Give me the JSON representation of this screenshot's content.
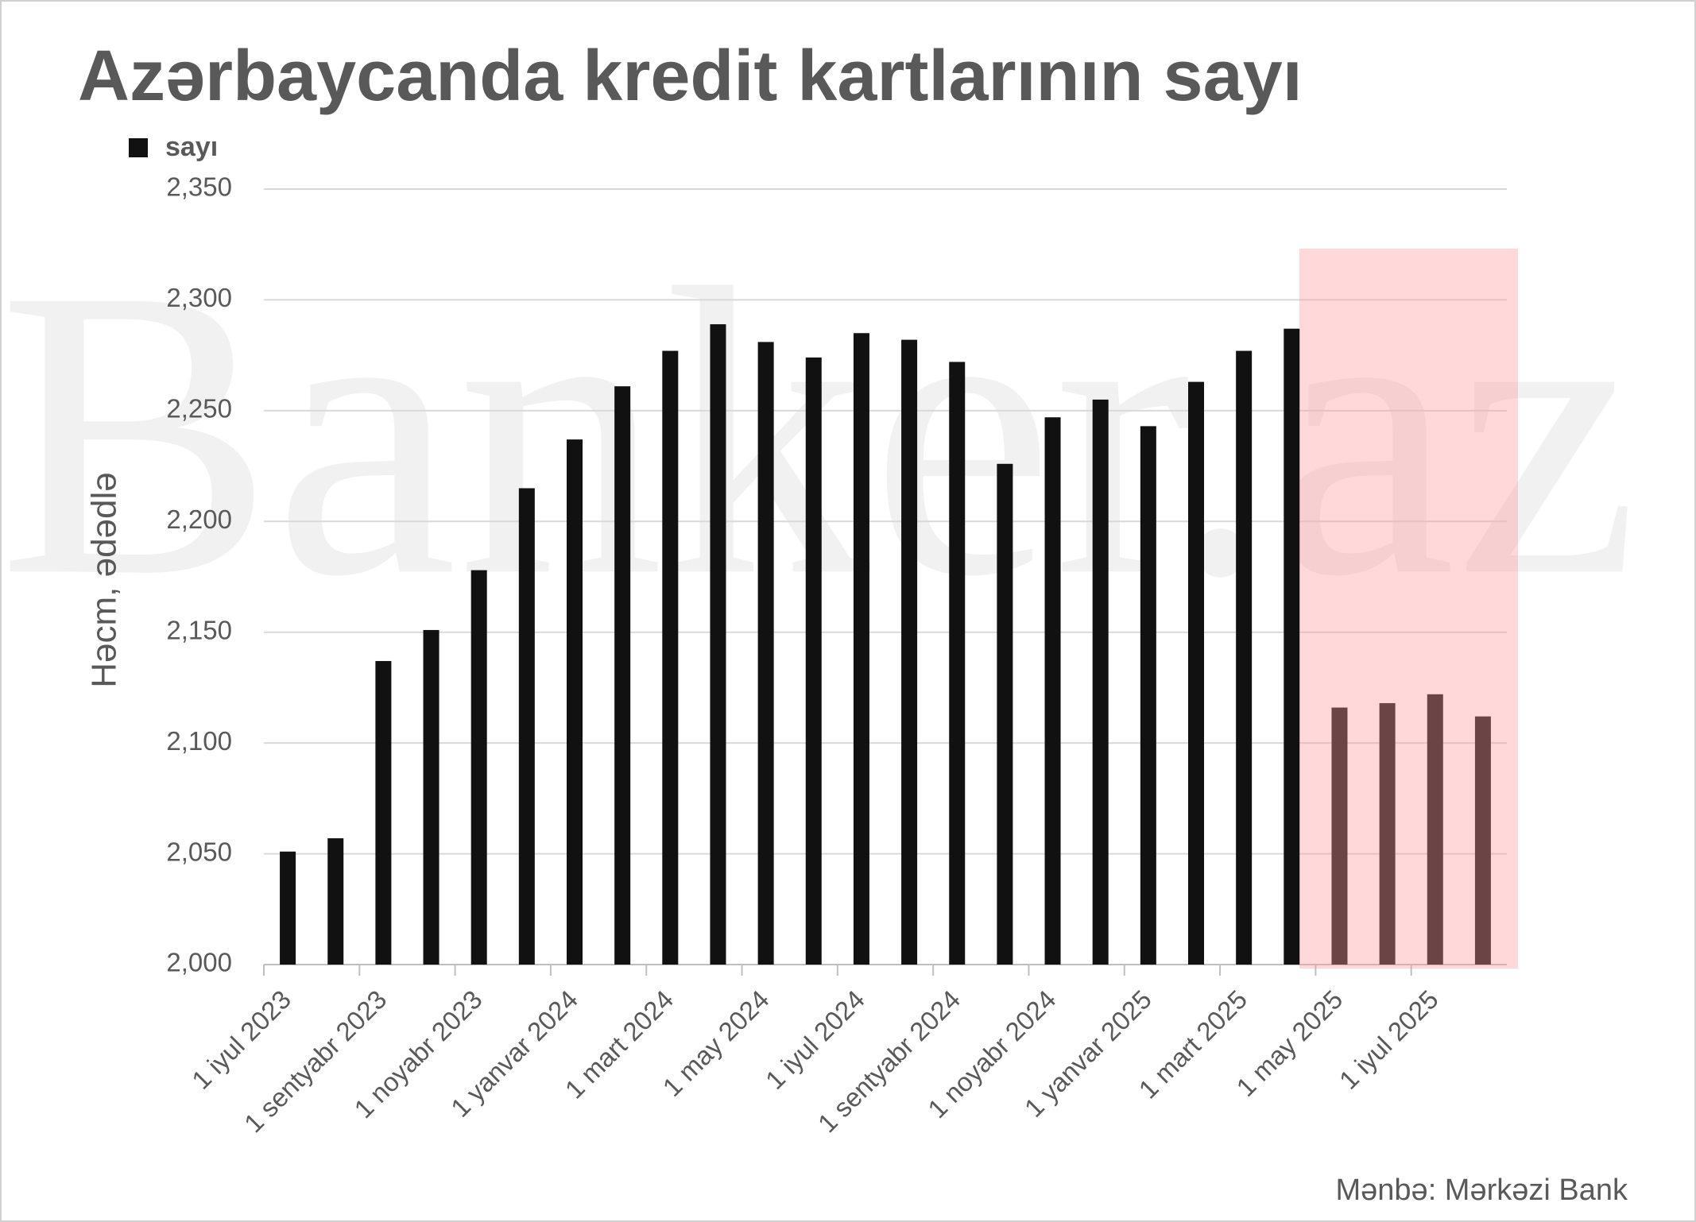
{
  "chart_data": {
    "type": "bar",
    "title": "Azərbaycanda kredit kartlarının sayı",
    "watermark": "Banker.az",
    "y_label": "Həcm, ədədlə",
    "source": "Mənbə: Mərkəzi Bank",
    "categories": [
      "1 iyul 2023",
      null,
      "1 sentyabr 2023",
      null,
      "1 noyabr 2023",
      null,
      "1 yanvar 2024",
      null,
      "1 mart 2024",
      null,
      "1 may 2024",
      null,
      "1 iyul 2024",
      null,
      "1 sentyabr 2024",
      null,
      "1 noyabr 2024",
      null,
      "1 yanvar 2025",
      null,
      "1 mart 2025",
      null,
      "1 may 2025",
      null,
      "1 iyul 2025",
      null
    ],
    "series": [
      {
        "name": "sayı",
        "color": "#111111",
        "values": [
          2051,
          2057,
          2137,
          2151,
          2178,
          2215,
          2237,
          2261,
          2277,
          2289,
          2281,
          2274,
          2285,
          2282,
          2272,
          2226,
          2247,
          2255,
          2243,
          2263,
          2277,
          2287,
          2116,
          2118,
          2122,
          2112
        ]
      }
    ],
    "ylim": [
      2000,
      2350
    ],
    "yticks": [
      {
        "value": 2000,
        "label": "2,000"
      },
      {
        "value": 2050,
        "label": "2,050"
      },
      {
        "value": 2100,
        "label": "2,100"
      },
      {
        "value": 2150,
        "label": "2,150"
      },
      {
        "value": 2200,
        "label": "2,200"
      },
      {
        "value": 2250,
        "label": "2,250"
      },
      {
        "value": 2300,
        "label": "2,300"
      },
      {
        "value": 2350,
        "label": "2,350"
      }
    ],
    "grid": true,
    "legend": "top-left"
  }
}
